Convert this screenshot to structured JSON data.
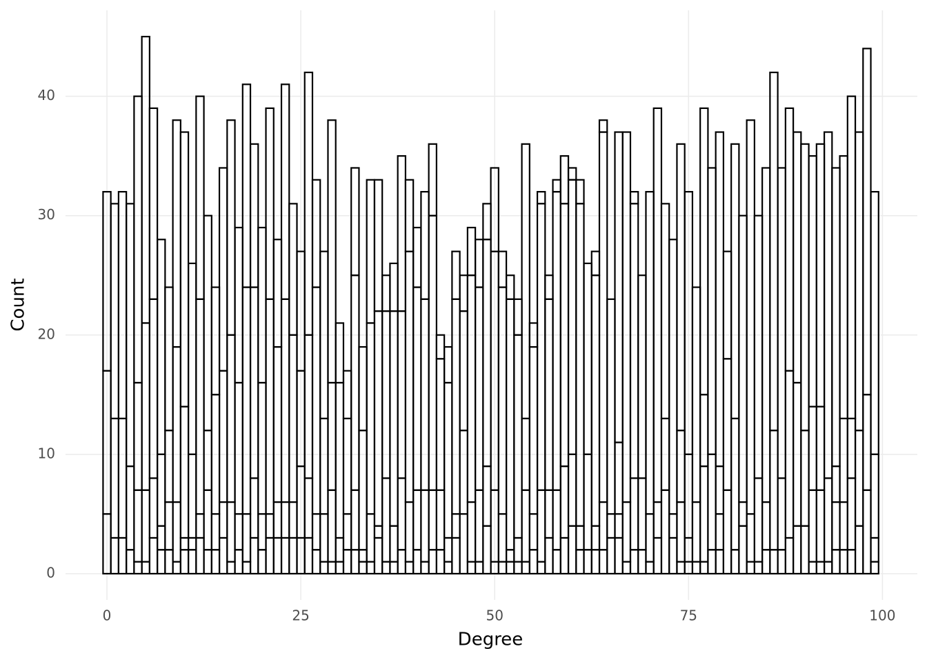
{
  "chart_data": {
    "type": "histogram",
    "x_label": "Degree",
    "y_label": "Count",
    "bins": [
      -0.5,
      0.5,
      1.5,
      2.5,
      3.5,
      4.5,
      5.5,
      6.5,
      7.5,
      8.5,
      9.5,
      10.5,
      11.5,
      12.5,
      13.5,
      14.5,
      15.5,
      16.5,
      17.5,
      18.5,
      19.5,
      20.5,
      21.5,
      22.5,
      23.5,
      24.5,
      25.5,
      26.5,
      27.5,
      28.5,
      29.5,
      30.5,
      31.5,
      32.5,
      33.5,
      34.5,
      35.5,
      36.5,
      37.5,
      38.5,
      39.5,
      40.5,
      41.5,
      42.5,
      43.5,
      44.5,
      45.5,
      46.5,
      47.5,
      48.5,
      49.5,
      50.5,
      51.5,
      52.5,
      53.5,
      54.5,
      55.5,
      56.5,
      57.5,
      58.5,
      59.5,
      60.5,
      61.5,
      62.5,
      63.5,
      64.5,
      65.5,
      66.5,
      67.5,
      68.5,
      69.5,
      70.5,
      71.5,
      72.5,
      73.5,
      74.5,
      75.5,
      76.5,
      77.5,
      78.5,
      79.5,
      80.5,
      81.5,
      82.5,
      83.5,
      84.5,
      85.5,
      86.5,
      87.5,
      88.5,
      89.5,
      90.5,
      91.5,
      92.5,
      93.5,
      94.5,
      95.5,
      96.5,
      97.5,
      98.5,
      99.5
    ],
    "fill": "none",
    "stroke": "#000000",
    "series": [
      {
        "values": [
          5,
          3,
          3,
          2,
          1,
          1,
          3,
          2,
          2,
          1,
          2,
          2,
          3,
          2,
          2,
          3,
          1,
          2,
          1,
          3,
          2,
          3,
          3,
          3,
          3,
          3,
          3,
          2,
          1,
          1,
          1,
          2,
          2,
          1,
          1,
          3,
          1,
          1,
          2,
          1,
          2,
          1,
          2,
          2,
          1,
          3,
          5,
          1,
          1,
          4,
          1,
          1,
          1,
          1,
          1,
          2,
          1,
          3,
          2,
          3,
          4,
          2,
          2,
          2,
          2,
          3,
          3,
          1,
          2,
          2,
          1,
          3,
          0,
          3,
          1,
          1,
          1,
          1,
          2,
          2,
          0,
          2,
          4,
          1,
          1,
          2,
          2,
          2,
          3,
          4,
          4,
          1,
          1,
          1,
          2,
          2,
          2,
          4,
          0,
          1
        ]
      },
      {
        "values": [
          12,
          10,
          10,
          7,
          6,
          6,
          5,
          2,
          4,
          5,
          1,
          1,
          2,
          5,
          3,
          3,
          5,
          3,
          4,
          5,
          3,
          2,
          3,
          3,
          3,
          6,
          5,
          3,
          4,
          6,
          2,
          3,
          5,
          1,
          4,
          1,
          7,
          3,
          6,
          5,
          5,
          6,
          5,
          5,
          2,
          2,
          7,
          5,
          6,
          5,
          6,
          4,
          1,
          2,
          6,
          3,
          6,
          4,
          5,
          6,
          6,
          2,
          0,
          2,
          4,
          2,
          2,
          5,
          6,
          6,
          4,
          3,
          7,
          2,
          5,
          2,
          5,
          8,
          8,
          3,
          7,
          11,
          2,
          4,
          7,
          4,
          10,
          6,
          0,
          12,
          8,
          6,
          6,
          7,
          4,
          4,
          6,
          8,
          7,
          2
        ]
      },
      {
        "values": [
          15,
          18,
          19,
          22,
          9,
          14,
          15,
          6,
          6,
          13,
          11,
          7,
          18,
          5,
          10,
          11,
          14,
          11,
          19,
          16,
          11,
          18,
          13,
          17,
          14,
          8,
          12,
          19,
          8,
          9,
          13,
          8,
          18,
          10,
          16,
          18,
          14,
          18,
          14,
          21,
          17,
          16,
          23,
          11,
          13,
          18,
          10,
          19,
          17,
          19,
          20,
          19,
          21,
          17,
          6,
          14,
          24,
          16,
          25,
          22,
          23,
          27,
          8,
          21,
          31,
          0,
          6,
          0,
          23,
          0,
          0,
          0,
          6,
          0,
          6,
          7,
          0,
          6,
          0,
          4,
          11,
          0,
          0,
          0,
          0,
          0,
          0,
          0,
          14,
          0,
          0,
          7,
          7,
          0,
          3,
          7,
          5,
          0,
          8,
          7
        ]
      },
      {
        "values": [
          0,
          0,
          0,
          0,
          24,
          24,
          16,
          18,
          12,
          19,
          23,
          16,
          17,
          18,
          9,
          17,
          18,
          13,
          17,
          12,
          13,
          16,
          9,
          18,
          11,
          10,
          22,
          9,
          14,
          22,
          5,
          4,
          9,
          7,
          12,
          11,
          3,
          4,
          13,
          6,
          5,
          9,
          6,
          2,
          3,
          4,
          3,
          4,
          4,
          3,
          7,
          3,
          2,
          3,
          23,
          2,
          1,
          2,
          1,
          4,
          1,
          2,
          16,
          2,
          1,
          18,
          26,
          31,
          1,
          17,
          27,
          33,
          18,
          23,
          24,
          22,
          18,
          24,
          24,
          28,
          9,
          23,
          24,
          33,
          22,
          28,
          30,
          26,
          22,
          21,
          24,
          21,
          22,
          29,
          25,
          22,
          27,
          25,
          29,
          22
        ]
      }
    ],
    "xlim": [
      -5.34,
      104.5
    ],
    "xticks": [
      0,
      25,
      50,
      75,
      100
    ],
    "ylim": [
      -2.2,
      47.2
    ],
    "yticks": [
      0,
      10,
      20,
      30,
      40
    ],
    "grid": true
  }
}
